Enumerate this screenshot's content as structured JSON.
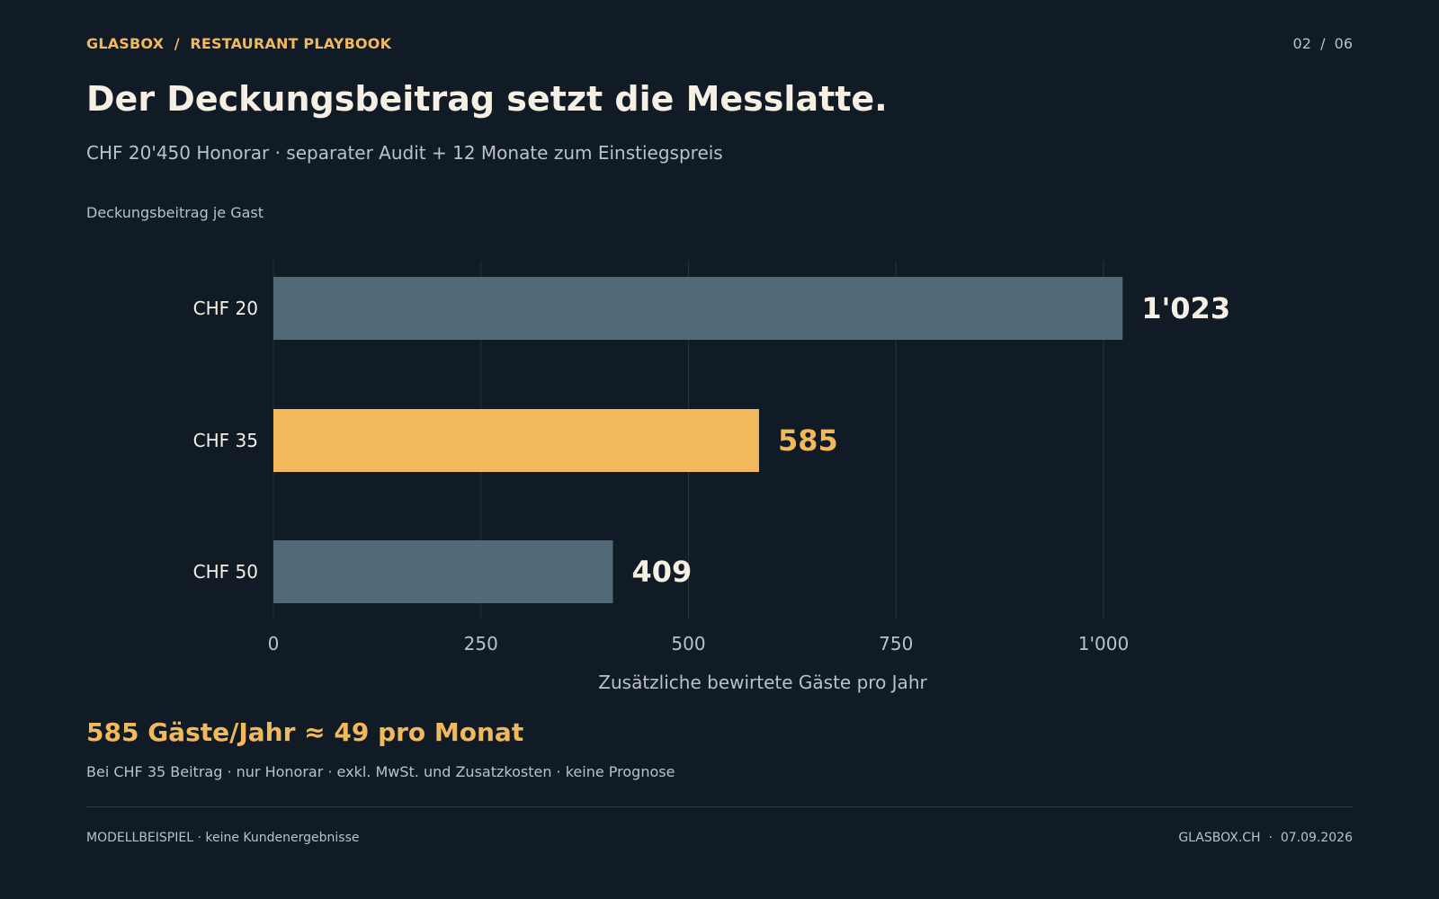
{
  "header": {
    "brand": "GLASBOX  /  RESTAURANT PLAYBOOK",
    "page_indicator": "02  /  06"
  },
  "title": "Der Deckungsbeitrag setzt die Messlatte.",
  "subtitle": "CHF 20'450 Honorar · separater Audit + 12 Monate zum Einstiegspreis",
  "chart_label": "Deckungsbeitrag je Gast",
  "chart_data": {
    "type": "bar",
    "orientation": "horizontal",
    "categories": [
      "CHF 20",
      "CHF 35",
      "CHF 50"
    ],
    "values": [
      1023,
      585,
      409
    ],
    "value_labels": [
      "1'023",
      "585",
      "409"
    ],
    "highlight_index": 1,
    "xlabel": "Zusätzliche bewirtete Gäste pro Jahr",
    "ylabel": "Deckungsbeitrag je Gast",
    "xlim": [
      0,
      1200
    ],
    "xticks": [
      0,
      250,
      500,
      750,
      1000
    ],
    "xtick_labels": [
      "0",
      "250",
      "500",
      "750",
      "1'000"
    ],
    "grid": true,
    "legend": "none"
  },
  "callout": "585 Gäste/Jahr ≈ 49 pro Monat",
  "note": "Bei CHF 35 Beitrag · nur Honorar · exkl. MwSt. und Zusatzkosten · keine Prognose",
  "footer": {
    "left": "MODELLBEISPIEL · keine Kundenergebnisse",
    "right": "GLASBOX.CH  ·  07.09.2026"
  },
  "colors": {
    "background": "#111b25",
    "accent": "#f2b95c",
    "bar_default": "#526978",
    "text_light": "#f5efe4",
    "text_muted": "#b9c2cc",
    "grid": "#26333f"
  }
}
